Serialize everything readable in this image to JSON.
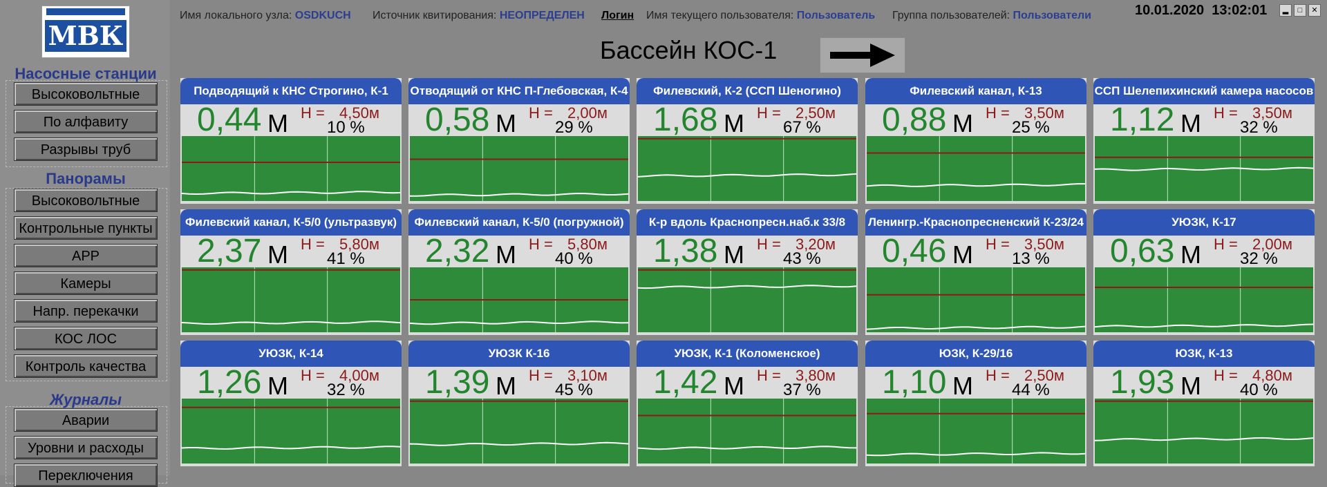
{
  "logo": {
    "text": "МВК"
  },
  "sidebar": {
    "sections": [
      {
        "title": "Насосные  станции",
        "items": [
          "Высоковольтные",
          "По алфавиту",
          "Разрывы труб"
        ]
      },
      {
        "title": "Панорамы",
        "items": [
          "Высоковольтные",
          "Контрольные пункты",
          "АРР",
          "Камеры",
          "Напр. перекачки",
          "КОС ЛОС",
          "Контроль качества"
        ]
      },
      {
        "title": "Журналы",
        "items": [
          "Аварии",
          "Уровни и расходы",
          "Переключения"
        ]
      }
    ]
  },
  "header": {
    "local_node_label": "Имя локального узла:",
    "local_node_value": "OSDKUCH",
    "ack_source_label": "Источник квитирования:",
    "ack_source_value": "НЕОПРЕДЕЛЕН",
    "login": "Логин",
    "user_label": "Имя текущего пользователя:",
    "user_value": "Пользователь",
    "group_label": "Группа пользователей:",
    "group_value": "Пользователи",
    "date": "10.01.2020",
    "time": "13:02:01",
    "title": "Бассейн КОС-1",
    "next_icon": "right-arrow-icon"
  },
  "colors": {
    "panel_header": "#2f56b6",
    "chart_bg": "#2e8b3a",
    "level_text": "#23852e",
    "threshold": "#8b1a1a"
  },
  "panel_labels": {
    "unit": "М",
    "h_label": "Н ="
  },
  "panels": [
    {
      "name": "Подводящий к КНС Строгино, К-1",
      "level": "0,44",
      "h": "4,50м",
      "pct": "10 %",
      "level_frac": 0.1,
      "h_frac": 0.6
    },
    {
      "name": "Отводящий от КНС П-Глебовская, К-4",
      "level": "0,58",
      "h": "2,00м",
      "pct": "29 %",
      "level_frac": 0.07,
      "h_frac": 0.65
    },
    {
      "name": "Филевский, К-2  (ССП Шеногино)",
      "level": "1,68",
      "h": "2,50м",
      "pct": "67 %",
      "level_frac": 0.38,
      "h_frac": 0.98
    },
    {
      "name": "Филевский канал, К-13",
      "level": "0,88",
      "h": "3,50м",
      "pct": "25 %",
      "level_frac": 0.22,
      "h_frac": 0.75
    },
    {
      "name": "ССП Шелепихинский камера насосов",
      "level": "1,12",
      "h": "3,50м",
      "pct": "32 %",
      "level_frac": 0.48,
      "h_frac": 0.68
    },
    {
      "name": "Филевский канал, К-5/0 (ультразвук)",
      "level": "2,37",
      "h": "5,80м",
      "pct": "41 %",
      "level_frac": 0.12,
      "h_frac": 0.98
    },
    {
      "name": "Филевский канал, К-5/0 (погружной)",
      "level": "2,32",
      "h": "5,80м",
      "pct": "40 %",
      "level_frac": 0.12,
      "h_frac": 0.5
    },
    {
      "name": "К-р вдоль Краснопресн.наб.к 33/8",
      "level": "1,38",
      "h": "3,20м",
      "pct": "43 %",
      "level_frac": 0.7,
      "h_frac": 0.98
    },
    {
      "name": "Ленингр.-Краснопресненский К-23/24",
      "level": "0,46",
      "h": "3,50м",
      "pct": "13 %",
      "level_frac": 0.04,
      "h_frac": 0.58
    },
    {
      "name": "УЮЗК, К-17",
      "level": "0,63",
      "h": "2,00м",
      "pct": "32 %",
      "level_frac": 0.07,
      "h_frac": 0.7
    },
    {
      "name": "УЮЗК, К-14",
      "level": "1,26",
      "h": "4,00м",
      "pct": "32 %",
      "level_frac": 0.22,
      "h_frac": 0.88
    },
    {
      "name": "УЮЗК К-16",
      "level": "1,39",
      "h": "3,10м",
      "pct": "45 %",
      "level_frac": 0.28,
      "h_frac": 0.98
    },
    {
      "name": "УЮЗК, К-1 (Коломенское)",
      "level": "1,42",
      "h": "3,80м",
      "pct": "37 %",
      "level_frac": 0.22,
      "h_frac": 0.75
    },
    {
      "name": "ЮЗК, К-29/16",
      "level": "1,10",
      "h": "2,50м",
      "pct": "44 %",
      "level_frac": 0.12,
      "h_frac": 0.78
    },
    {
      "name": "ЮЗК, К-13",
      "level": "1,93",
      "h": "4,80м",
      "pct": "40 %",
      "level_frac": 0.36,
      "h_frac": 0.98
    }
  ]
}
